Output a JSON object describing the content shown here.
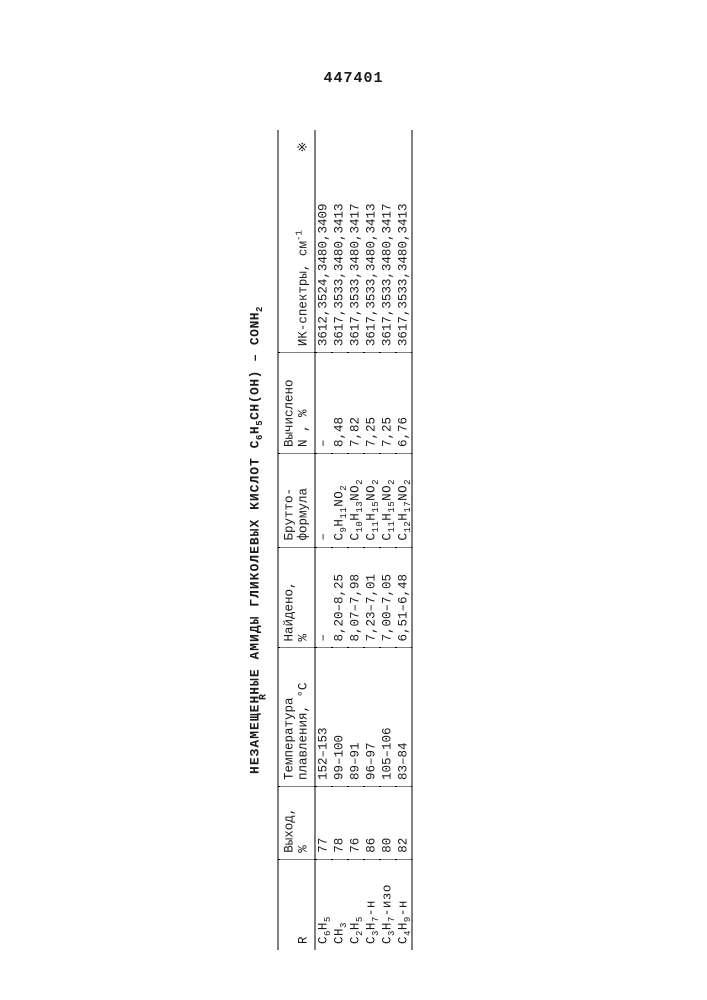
{
  "doc_number": "447401",
  "title_prefix": "НЕЗАМЕЩЕННЫЕ АМИДЫ ГЛИКОЛЕВЫХ КИСЛОТ ",
  "title_formula_html": "C<sub>6</sub>H<sub>5</sub>CH(OH) – CONH<sub>2</sub>",
  "title_sub_r": "R",
  "headers": {
    "r": "R",
    "yield": "Выход,",
    "yield_unit": "%",
    "mp": "Температура",
    "mp2": "плавления,",
    "mp_unit": "°C",
    "found": "Найдено,",
    "found_unit": "%",
    "brutto": "Брутто-",
    "brutto2": "формула",
    "calc": "Вычислено",
    "calc2": "N , %",
    "ir": "ИК-спектры, см",
    "ir_sup": "-1",
    "note": "※"
  },
  "rows": [
    {
      "r_html": "C<sub>6</sub>H<sub>5</sub>",
      "yield": "77",
      "mp": "152–153",
      "found": "–",
      "brutto_html": "–",
      "calc": "–",
      "ir": "3612,3524,3480,3409"
    },
    {
      "r_html": "CH<sub>3</sub>",
      "yield": "78",
      "mp": "99–100",
      "found": "8,20–8,25",
      "brutto_html": "C<sub>9</sub>H<sub>11</sub>NO<sub>2</sub>",
      "calc": "8,48",
      "ir": "3617,3533,3480,3413"
    },
    {
      "r_html": "C<sub>2</sub>H<sub>5</sub>",
      "yield": "76",
      "mp": "89–91",
      "found": "8,07–7,98",
      "brutto_html": "C<sub>10</sub>H<sub>13</sub>NO<sub>2</sub>",
      "calc": "7,82",
      "ir": "3617,3533,3480,3417"
    },
    {
      "r_html": "C<sub>3</sub>H<sub>7</sub>-н",
      "yield": "86",
      "mp": "96–97",
      "found": "7,23–7,01",
      "brutto_html": "C<sub>11</sub>H<sub>15</sub>NO<sub>2</sub>",
      "calc": "7,25",
      "ir": "3617,3533,3480,3413"
    },
    {
      "r_html": "C<sub>3</sub>H<sub>7</sub>-изо",
      "yield": "80",
      "mp": "105–106",
      "found": "7,00–7,05",
      "brutto_html": "C<sub>11</sub>H<sub>15</sub>NO<sub>2</sub>",
      "calc": "7,25",
      "ir": "3617,3533,3480,3417"
    },
    {
      "r_html": "C<sub>4</sub>H<sub>9</sub>-н",
      "yield": "82",
      "mp": "83–84",
      "found": "6,51–6,48",
      "brutto_html": "C<sub>12</sub>H<sub>17</sub>NO<sub>2</sub>",
      "calc": "6,76",
      "ir": "3617,3533,3480,3413"
    }
  ]
}
